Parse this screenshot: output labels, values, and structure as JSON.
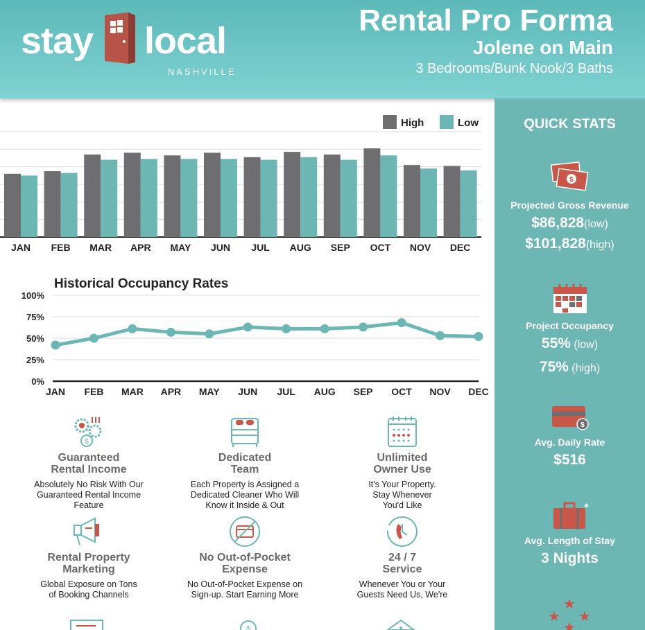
{
  "brand": {
    "word1": "stay",
    "word2": "local",
    "sub": "NASHVILLE"
  },
  "header": {
    "title": "Rental Pro Forma",
    "subtitle": "Jolene on Main",
    "details": "3 Bedrooms/Bunk Nook/3 Baths"
  },
  "colors": {
    "teal": "#6cb7b3",
    "gray": "#6e6e70",
    "red": "#c8574a",
    "header_top": "#5cb8b8",
    "header_bottom": "#7fd2d2"
  },
  "chart_data": [
    {
      "type": "bar",
      "categories": [
        "JAN",
        "FEB",
        "MAR",
        "APR",
        "MAY",
        "JUN",
        "JUL",
        "AUG",
        "SEP",
        "OCT",
        "NOV",
        "DEC"
      ],
      "series": [
        {
          "name": "High",
          "values": [
            72,
            75,
            94,
            96,
            93,
            96,
            91,
            97,
            94,
            101,
            82,
            81
          ]
        },
        {
          "name": "Low",
          "values": [
            70,
            73,
            88,
            89,
            89,
            89,
            88,
            91,
            88,
            93,
            78,
            76
          ]
        }
      ],
      "ylim": [
        0,
        120
      ],
      "grid": true,
      "legend": "top-right"
    },
    {
      "type": "line",
      "title": "Historical Occupancy Rates",
      "categories": [
        "JAN",
        "FEB",
        "MAR",
        "APR",
        "MAY",
        "JUN",
        "JUL",
        "AUG",
        "SEP",
        "OCT",
        "NOV",
        "DEC"
      ],
      "series": [
        {
          "values": [
            42,
            50,
            61,
            57,
            55,
            63,
            61,
            61,
            63,
            68,
            53,
            52
          ]
        }
      ],
      "yticks": [
        "100%",
        "75%",
        "50%",
        "25%",
        "0%"
      ],
      "ylim": [
        0,
        100
      ],
      "grid": true
    }
  ],
  "quick_stats": {
    "title": "QUICK STATS",
    "revenue": {
      "label": "Projected Gross Revenue",
      "low": "$86,828",
      "low_tag": "(low)",
      "high": "$101,828",
      "high_tag": "(high)"
    },
    "occupancy": {
      "label": "Project Occupancy",
      "low": "55%",
      "low_tag": " (low)",
      "high": "75%",
      "high_tag": " (high)"
    },
    "adr": {
      "label": "Avg. Daily Rate",
      "value": "$516"
    },
    "stay": {
      "label": "Avg. Length of Stay",
      "value": "3 Nights"
    }
  },
  "features": [
    {
      "icon": "gears-money-icon",
      "title": [
        "Guaranteed",
        "Rental Income"
      ],
      "desc": [
        "Absolutely No Risk With Our",
        "Guaranteed Rental Income",
        "Feature"
      ]
    },
    {
      "icon": "bed-icon",
      "title": [
        "Dedicated",
        "Team"
      ],
      "desc": [
        "Each Property is Assigned a",
        "Dedicated Cleaner Who Will",
        "Know it Inside & Out"
      ]
    },
    {
      "icon": "calendar-icon",
      "title": [
        "Unlimited",
        "Owner Use"
      ],
      "desc": [
        "It's Your Property.",
        "Stay Whenever",
        "You'd Like"
      ]
    },
    {
      "icon": "megaphone-icon",
      "title": [
        "Rental Property",
        "Marketing"
      ],
      "desc": [
        "Global Exposure on Tons",
        "of Booking Channels"
      ]
    },
    {
      "icon": "no-card-icon",
      "title": [
        "No Out-of-Pocket",
        "Expense"
      ],
      "desc": [
        "No Out-of-Pocket Expense on",
        "Sign-up. Start Earning More"
      ]
    },
    {
      "icon": "phone-clock-icon",
      "title": [
        "24 / 7",
        "Service"
      ],
      "desc": [
        "Whenever You or Your",
        "Guests Need Us, We're"
      ]
    }
  ]
}
